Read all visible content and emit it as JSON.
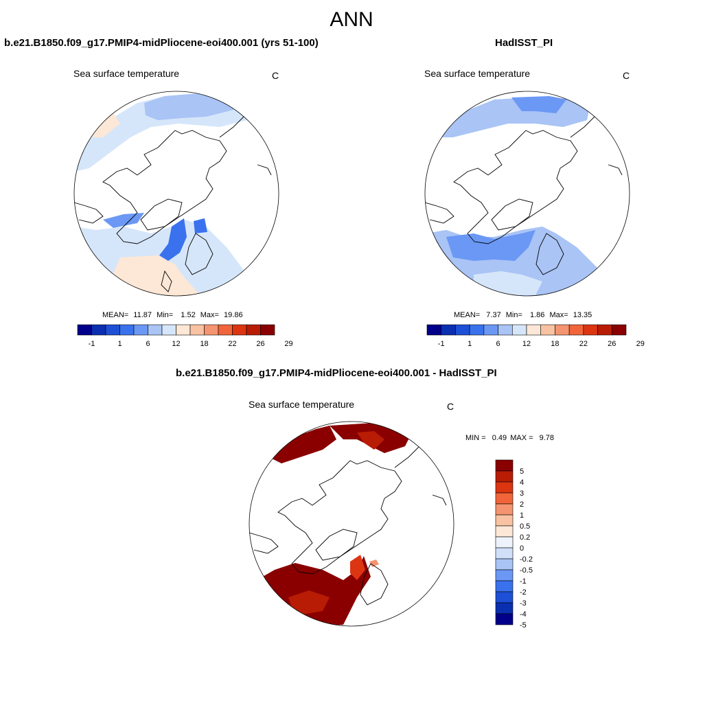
{
  "title": "ANN",
  "colors": {
    "seq_palette": [
      "#00008a",
      "#0a2fb0",
      "#1d50d6",
      "#3a72ee",
      "#6b98f5",
      "#a9c4f5",
      "#d6e6fa",
      "#fde7d6",
      "#f8c2a3",
      "#f59470",
      "#f2653a",
      "#dc3512",
      "#b81c05",
      "#8a0000"
    ],
    "diff_palette": [
      "#8a0000",
      "#b81c05",
      "#dc3512",
      "#f2653a",
      "#f59470",
      "#f8c2a3",
      "#fde7d6",
      "#eef3fb",
      "#d0e0f8",
      "#a9c4f5",
      "#6b98f5",
      "#3a72ee",
      "#1d50d6",
      "#0a2fb0",
      "#00008a"
    ]
  },
  "panels": {
    "left": {
      "case": "b.e21.B1850.f09_g17.PMIP4-midPliocene-eoi400.001 (yrs 51-100)",
      "variable": "Sea surface temperature",
      "units": "C",
      "stats": {
        "mean_label": "MEAN=",
        "mean": "11.87",
        "min_label": "Min=",
        "min": "1.52",
        "max_label": "Max=",
        "max": "19.86"
      }
    },
    "right": {
      "case": "HadISST_PI",
      "variable": "Sea surface temperature",
      "units": "C",
      "stats": {
        "mean_label": "MEAN=",
        "mean": "7.37",
        "min_label": "Min=",
        "min": "1.86",
        "max_label": "Max=",
        "max": "13.35"
      }
    },
    "diff": {
      "case": "b.e21.B1850.f09_g17.PMIP4-midPliocene-eoi400.001 - HadISST_PI",
      "variable": "Sea surface temperature",
      "units": "C",
      "stats": {
        "min_label": "MIN =",
        "min": "0.49",
        "max_label": "MAX =",
        "max": "9.78"
      }
    }
  },
  "chart_data": [
    {
      "type": "heatmap",
      "title": "b.e21.B1850.f09_g17.PMIP4-midPliocene-eoi400.001 (yrs 51-100)",
      "variable": "Sea surface temperature",
      "units": "C",
      "projection": "north polar stereographic",
      "mean": 11.87,
      "min": 1.52,
      "max": 19.86,
      "colorbar_ticks": [
        "-1",
        "1",
        "6",
        "12",
        "18",
        "22",
        "26",
        "29"
      ],
      "colorbar_orientation": "horizontal"
    },
    {
      "type": "heatmap",
      "title": "HadISST_PI",
      "variable": "Sea surface temperature",
      "units": "C",
      "projection": "north polar stereographic",
      "mean": 7.37,
      "min": 1.86,
      "max": 13.35,
      "colorbar_ticks": [
        "-1",
        "1",
        "6",
        "12",
        "18",
        "22",
        "26",
        "29"
      ],
      "colorbar_orientation": "horizontal"
    },
    {
      "type": "heatmap",
      "title": "b.e21.B1850.f09_g17.PMIP4-midPliocene-eoi400.001 - HadISST_PI",
      "variable": "Sea surface temperature",
      "units": "C",
      "projection": "north polar stereographic",
      "min": 0.49,
      "max": 9.78,
      "colorbar_ticks": [
        "5",
        "4",
        "3",
        "2",
        "1",
        "0.5",
        "0.2",
        "0",
        "-0.2",
        "-0.5",
        "-1",
        "-2",
        "-3",
        "-4",
        "-5"
      ],
      "colorbar_orientation": "vertical"
    }
  ]
}
